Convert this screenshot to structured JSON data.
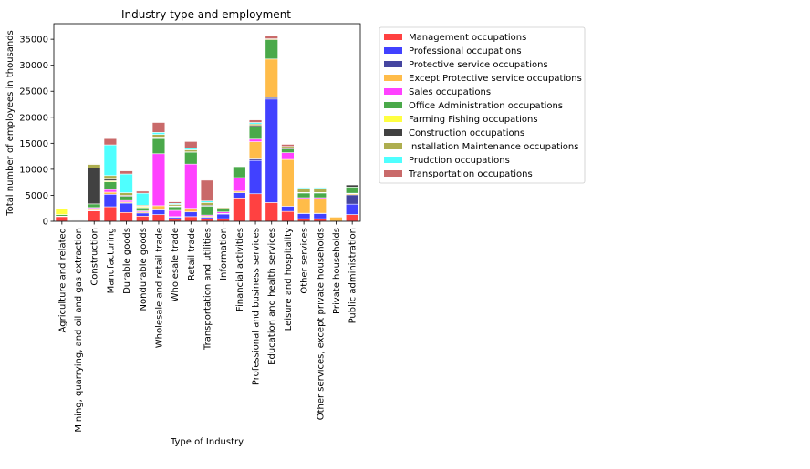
{
  "chart_data": {
    "type": "bar",
    "stacked": true,
    "title": "Industry type and employment",
    "xlabel": "Type of Industry",
    "ylabel": "Total number of employees in thousands",
    "ylim": [
      0,
      38000
    ],
    "yticks": [
      0,
      5000,
      10000,
      15000,
      20000,
      25000,
      30000,
      35000
    ],
    "ytick_labels": [
      "0",
      "5000",
      "10000",
      "15000",
      "20000",
      "25000",
      "30000",
      "35000"
    ],
    "grid": false,
    "legend_position": "outside-right",
    "categories": [
      "Agriculture and related",
      "Mining, quarrying, and oil and gas extraction",
      "Construction",
      "Manufacturing",
      "Durable goods",
      "Nondurable goods",
      "Wholesale and retail trade",
      "Wholesale trade",
      "Retail trade",
      "Transportation and utilities",
      "Information",
      "Financial activities",
      "Professional and business services",
      "Education and health services",
      "Leisure and hospitality",
      "Other services",
      "Other services, except private households",
      "Private households",
      "Public administration"
    ],
    "series": [
      {
        "name": "Management occupations",
        "color": "#ff2020",
        "values": [
          900,
          50,
          2000,
          2800,
          1700,
          1000,
          1300,
          500,
          900,
          500,
          500,
          4500,
          5300,
          3600,
          1900,
          500,
          500,
          0,
          1300
        ]
      },
      {
        "name": "Professional occupations",
        "color": "#2020ff",
        "values": [
          0,
          50,
          100,
          2400,
          1800,
          600,
          900,
          300,
          900,
          300,
          900,
          1000,
          6400,
          19900,
          1000,
          1000,
          1000,
          0,
          2000
        ]
      },
      {
        "name": "Protective service occupations",
        "color": "#25258f",
        "values": [
          0,
          0,
          50,
          0,
          0,
          0,
          0,
          0,
          0,
          0,
          0,
          0,
          300,
          300,
          0,
          50,
          50,
          0,
          1800
        ]
      },
      {
        "name": "Except Protective service occupations",
        "color": "#ffb029",
        "values": [
          100,
          0,
          300,
          400,
          200,
          200,
          800,
          100,
          700,
          200,
          100,
          300,
          3300,
          7400,
          9000,
          2700,
          2700,
          800,
          200
        ]
      },
      {
        "name": "Sales occupations",
        "color": "#ff20ff",
        "values": [
          0,
          0,
          200,
          500,
          300,
          200,
          10000,
          1200,
          8500,
          200,
          300,
          2600,
          500,
          0,
          1300,
          300,
          300,
          0,
          100
        ]
      },
      {
        "name": "Office Administration occupations",
        "color": "#2a9a2a",
        "values": [
          300,
          50,
          700,
          1500,
          800,
          600,
          2900,
          700,
          2300,
          1700,
          600,
          2100,
          2300,
          3700,
          700,
          900,
          900,
          0,
          1200
        ]
      },
      {
        "name": "Farming Fishing occupations",
        "color": "#ffff20",
        "values": [
          1100,
          0,
          0,
          200,
          0,
          200,
          200,
          100,
          0,
          0,
          0,
          0,
          0,
          0,
          0,
          0,
          0,
          0,
          0
        ]
      },
      {
        "name": "Construction occupations",
        "color": "#202020",
        "values": [
          0,
          50,
          6900,
          300,
          200,
          100,
          100,
          50,
          50,
          200,
          0,
          0,
          300,
          0,
          200,
          100,
          100,
          0,
          400
        ]
      },
      {
        "name": "Installation Maintenance occupations",
        "color": "#a0a030",
        "values": [
          0,
          50,
          700,
          700,
          500,
          200,
          500,
          300,
          400,
          500,
          200,
          0,
          300,
          200,
          300,
          800,
          800,
          0,
          0
        ]
      },
      {
        "name": "Prudction occupations",
        "color": "#30ffff",
        "values": [
          0,
          0,
          0,
          5900,
          3600,
          2300,
          400,
          200,
          300,
          300,
          0,
          0,
          300,
          0,
          0,
          200,
          200,
          0,
          0
        ]
      },
      {
        "name": "Transportation occupations",
        "color": "#c05050",
        "values": [
          0,
          50,
          100,
          1200,
          600,
          400,
          1900,
          300,
          1300,
          4000,
          100,
          0,
          500,
          600,
          400,
          100,
          100,
          0,
          0
        ]
      }
    ]
  }
}
